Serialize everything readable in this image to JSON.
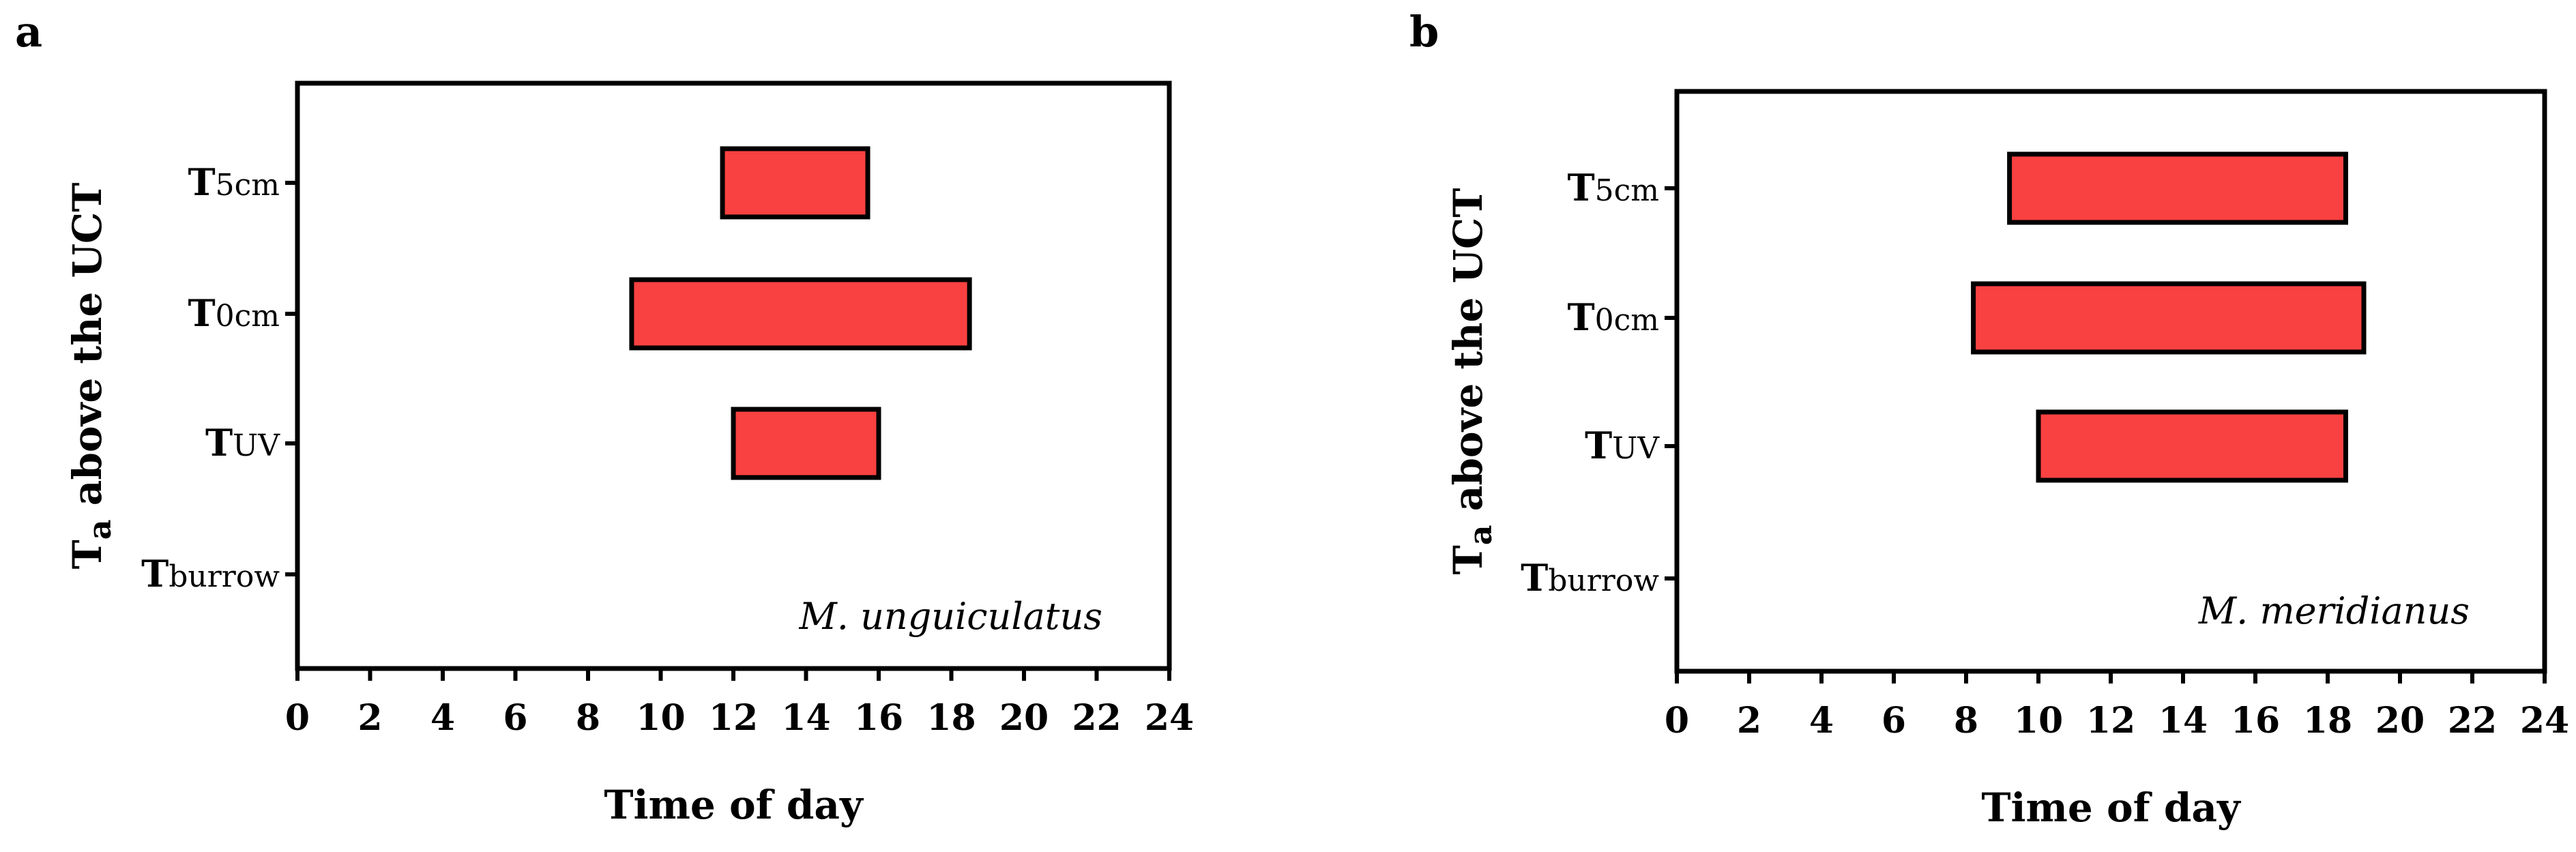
{
  "chart_data": [
    {
      "type": "bar",
      "orientation": "horizontal-range",
      "panel_label": "a",
      "species": "M. unguiculatus",
      "xlabel": "Time of day",
      "ylabel_main": "T",
      "ylabel_sub": "a",
      "ylabel_rest": " above the UCT",
      "xlim": [
        0,
        24
      ],
      "xticks": [
        "0",
        "2",
        "4",
        "6",
        "8",
        "10",
        "12",
        "14",
        "16",
        "18",
        "20",
        "22",
        "24"
      ],
      "categories": [
        {
          "main": "T",
          "sub": "5cm"
        },
        {
          "main": "T",
          "sub": "0cm"
        },
        {
          "main": "T",
          "sub": "UV"
        },
        {
          "main": "T",
          "sub": "burrow"
        }
      ],
      "ranges": [
        {
          "category": "T5cm",
          "start": 11.7,
          "end": 15.7
        },
        {
          "category": "T0cm",
          "start": 9.2,
          "end": 18.5
        },
        {
          "category": "TUV",
          "start": 12.0,
          "end": 16.0
        }
      ],
      "bar_color": "#f94141"
    },
    {
      "type": "bar",
      "orientation": "horizontal-range",
      "panel_label": "b",
      "species": "M. meridianus",
      "xlabel": "Time of day",
      "ylabel_main": "T",
      "ylabel_sub": "a",
      "ylabel_rest": " above the UCT",
      "xlim": [
        0,
        24
      ],
      "xticks": [
        "0",
        "2",
        "4",
        "6",
        "8",
        "10",
        "12",
        "14",
        "16",
        "18",
        "20",
        "22",
        "24"
      ],
      "categories": [
        {
          "main": "T",
          "sub": "5cm"
        },
        {
          "main": "T",
          "sub": "0cm"
        },
        {
          "main": "T",
          "sub": "UV"
        },
        {
          "main": "T",
          "sub": "burrow"
        }
      ],
      "ranges": [
        {
          "category": "T5cm",
          "start": 9.2,
          "end": 18.5
        },
        {
          "category": "T0cm",
          "start": 8.2,
          "end": 19.0
        },
        {
          "category": "TUV",
          "start": 10.0,
          "end": 18.5
        }
      ],
      "bar_color": "#f94141"
    }
  ]
}
